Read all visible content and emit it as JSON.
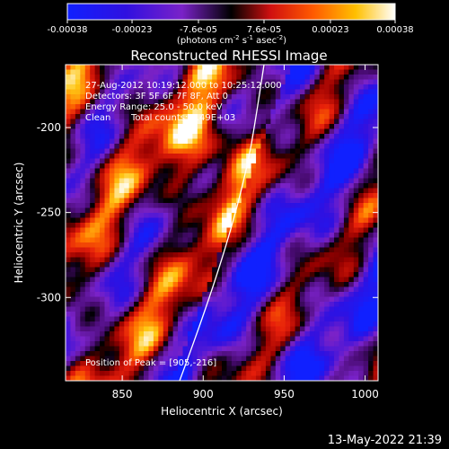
{
  "colorbar": {
    "tick_labels": [
      "-0.00038",
      "-0.00023",
      "-7.6e-05",
      "7.6e-05",
      "0.00023",
      "0.00038"
    ],
    "tick_values": [
      -0.00038,
      -0.00023,
      -7.6e-05,
      7.6e-05,
      0.00023,
      0.00038
    ],
    "range": [
      -0.00038,
      0.00038
    ],
    "units_prefix": "(photons cm",
    "units_exp1": "-2",
    "units_mid": " s",
    "units_exp2": "-1",
    "units_mid2": " asec",
    "units_exp3": "-2",
    "units_suffix": ")"
  },
  "chart_data": {
    "type": "heatmap",
    "title": "Reconstructed RHESSI Image",
    "xlabel": "Heliocentric X (arcsec)",
    "ylabel": "Heliocentric Y (arcsec)",
    "xlim": [
      815,
      1008
    ],
    "ylim": [
      -349,
      -163
    ],
    "xticks": [
      850,
      900,
      950,
      1000
    ],
    "yticks": [
      -200,
      -250,
      -300
    ],
    "xtick_labels": [
      "850",
      "900",
      "950",
      "1000"
    ],
    "ytick_labels": [
      "-200",
      "-250",
      "-300"
    ],
    "peak": [
      905,
      -216
    ],
    "colors": {
      "negative_low": "#0000ff",
      "negative_mid": "#7722cc",
      "zero": "#000000",
      "positive_mid": "#ff2200",
      "positive_high": "#ffffff"
    },
    "annotations": {
      "line1": "27-Aug-2012 10:19:12.000 to 10:25:12.000",
      "line2": "Detectors: 3F 5F 6F 7F 8F, Att 0",
      "line3": "Energy Range: 25.0 - 50.0 keV",
      "line4_a": "Clean",
      "line4_b": "Total counts: 7.49E+03",
      "peak_label": "Position of Peak = [905,-216]"
    }
  },
  "footer": {
    "date": "13-May-2022 21:39"
  }
}
